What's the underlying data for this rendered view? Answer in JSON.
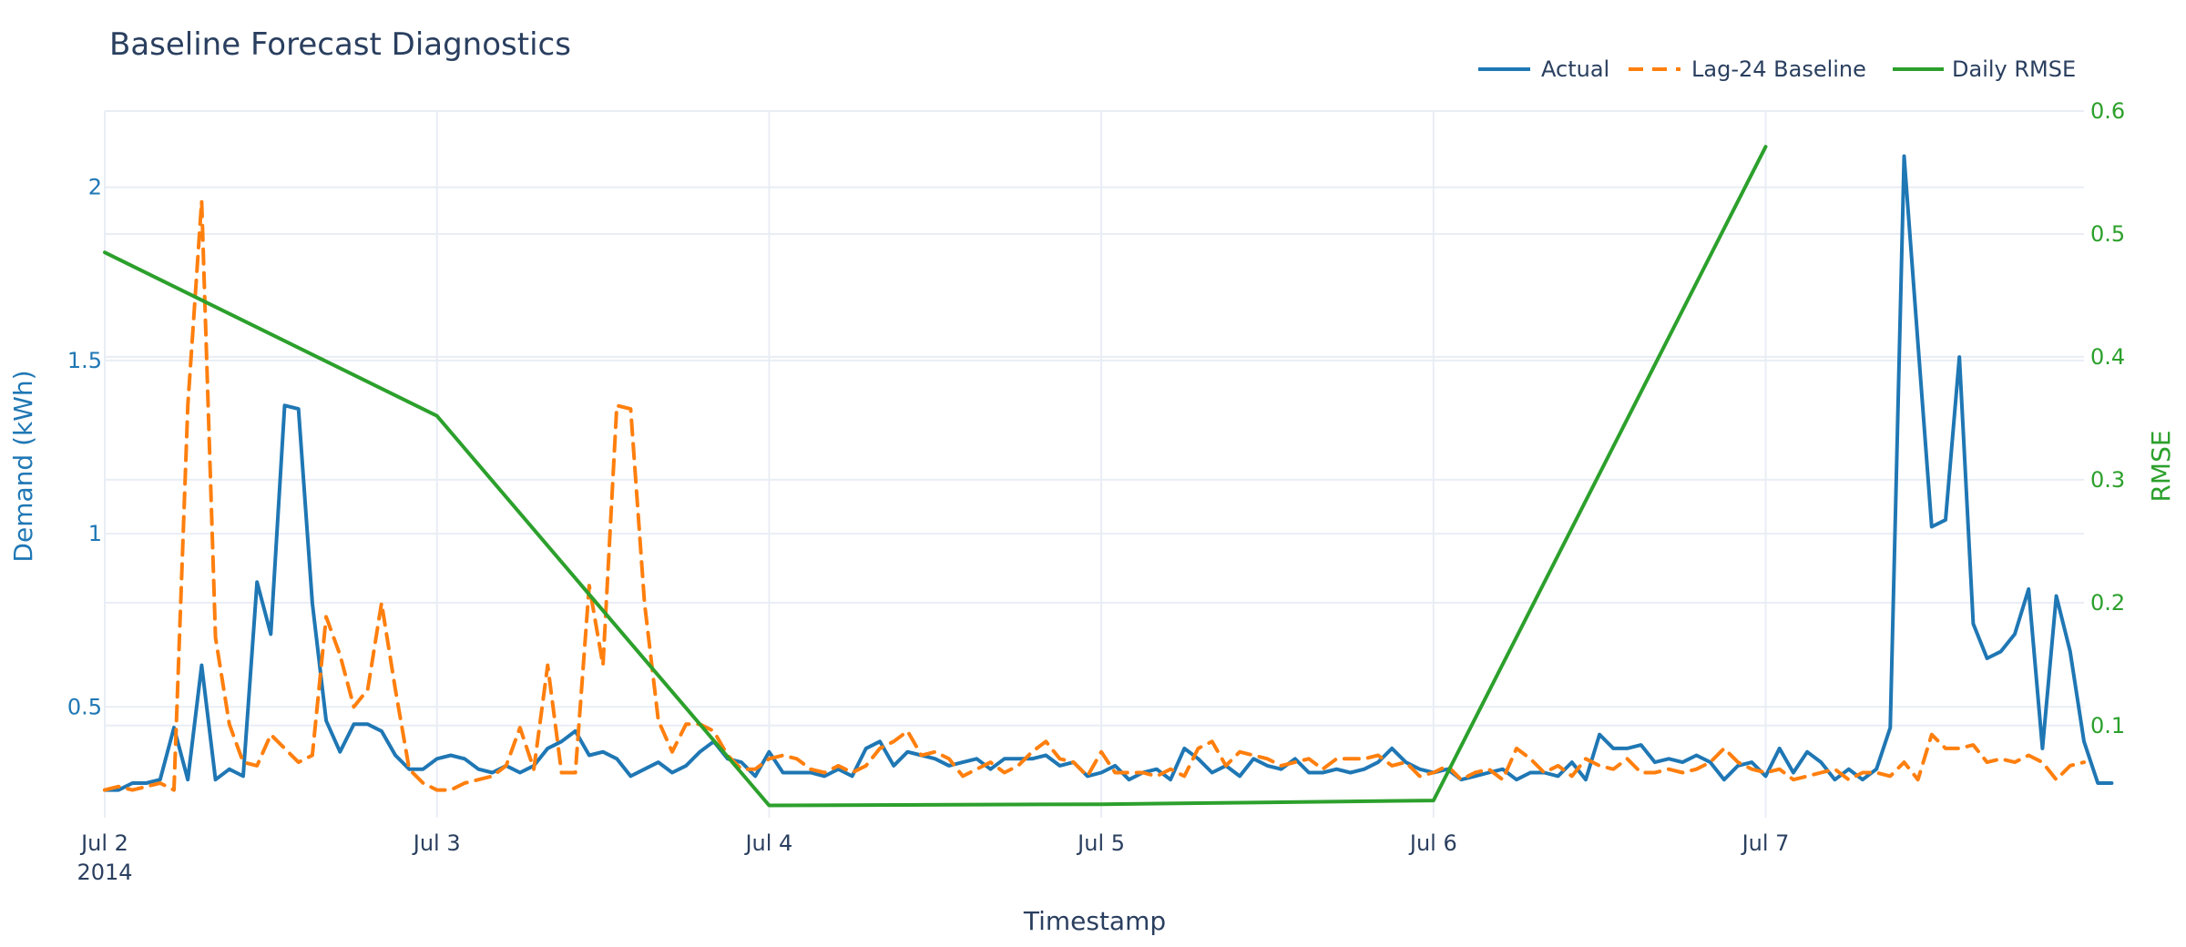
{
  "chart_data": {
    "type": "line",
    "title": "Baseline Forecast Diagnostics",
    "xlabel": "Timestamp",
    "ylabel": "Demand (kWh)",
    "y2label": "RMSE",
    "grid": true,
    "legend_position": "top-right",
    "x_range": [
      "2014-07-02 00:00",
      "2014-07-07 23:00"
    ],
    "ylim": [
      0.18,
      2.22
    ],
    "y2lim": [
      0.025,
      0.6
    ],
    "x_ticks": [
      {
        "date": "2014-07-02",
        "label": "Jul 2",
        "sublabel": "2014"
      },
      {
        "date": "2014-07-03",
        "label": "Jul 3",
        "sublabel": ""
      },
      {
        "date": "2014-07-04",
        "label": "Jul 4",
        "sublabel": ""
      },
      {
        "date": "2014-07-05",
        "label": "Jul 5",
        "sublabel": ""
      },
      {
        "date": "2014-07-06",
        "label": "Jul 6",
        "sublabel": ""
      },
      {
        "date": "2014-07-07",
        "label": "Jul 7",
        "sublabel": ""
      }
    ],
    "y_ticks": [
      {
        "value": 0.5,
        "label": "0.5"
      },
      {
        "value": 1,
        "label": "1"
      },
      {
        "value": 1.5,
        "label": "1.5"
      },
      {
        "value": 2,
        "label": "2"
      }
    ],
    "y2_ticks": [
      {
        "value": 0.1,
        "label": "0.1"
      },
      {
        "value": 0.2,
        "label": "0.2"
      },
      {
        "value": 0.3,
        "label": "0.3"
      },
      {
        "value": 0.4,
        "label": "0.4"
      },
      {
        "value": 0.5,
        "label": "0.5"
      },
      {
        "value": 0.6,
        "label": "0.6"
      }
    ],
    "series": [
      {
        "name": "Actual",
        "axis": "y",
        "color": "#1f77b4",
        "dash": "solid",
        "x_start": "2014-07-02 00:00",
        "x_step_hours": 1,
        "values": [
          0.26,
          0.26,
          0.28,
          0.28,
          0.29,
          0.44,
          0.29,
          0.62,
          0.29,
          0.32,
          0.3,
          0.86,
          0.71,
          1.37,
          1.36,
          0.8,
          0.46,
          0.37,
          0.45,
          0.45,
          0.43,
          0.36,
          0.32,
          0.32,
          0.35,
          0.36,
          0.35,
          0.32,
          0.31,
          0.33,
          0.31,
          0.33,
          0.38,
          0.4,
          0.43,
          0.36,
          0.37,
          0.35,
          0.3,
          0.32,
          0.34,
          0.31,
          0.33,
          0.37,
          0.4,
          0.35,
          0.34,
          0.3,
          0.37,
          0.31,
          0.31,
          0.31,
          0.3,
          0.32,
          0.3,
          0.38,
          0.4,
          0.33,
          0.37,
          0.36,
          0.35,
          0.33,
          0.34,
          0.35,
          0.32,
          0.35,
          0.35,
          0.35,
          0.36,
          0.33,
          0.34,
          0.3,
          0.31,
          0.33,
          0.29,
          0.31,
          0.32,
          0.29,
          0.38,
          0.35,
          0.31,
          0.33,
          0.3,
          0.35,
          0.33,
          0.32,
          0.35,
          0.31,
          0.31,
          0.32,
          0.31,
          0.32,
          0.34,
          0.38,
          0.34,
          0.32,
          0.31,
          0.32,
          0.29,
          0.3,
          0.31,
          0.32,
          0.29,
          0.31,
          0.31,
          0.3,
          0.34,
          0.29,
          0.42,
          0.38,
          0.38,
          0.39,
          0.34,
          0.35,
          0.34,
          0.36,
          0.34,
          0.29,
          0.33,
          0.34,
          0.3,
          0.38,
          0.31,
          0.37,
          0.34,
          0.29,
          0.32,
          0.29,
          0.32,
          0.44,
          2.09,
          1.55,
          1.02,
          1.04,
          1.51,
          0.74,
          0.64,
          0.66,
          0.71,
          0.84,
          0.38,
          0.82,
          0.66,
          0.4,
          0.28,
          0.28
        ]
      },
      {
        "name": "Lag-24 Baseline",
        "axis": "y",
        "color": "#ff7f0e",
        "dash": "dashed",
        "x_start": "2014-07-02 00:00",
        "x_step_hours": 1,
        "values": [
          0.26,
          0.27,
          0.26,
          0.27,
          0.28,
          0.26,
          1.37,
          1.96,
          0.7,
          0.45,
          0.34,
          0.33,
          0.42,
          0.38,
          0.34,
          0.36,
          0.76,
          0.65,
          0.5,
          0.55,
          0.8,
          0.55,
          0.32,
          0.28,
          0.26,
          0.26,
          0.28,
          0.29,
          0.3,
          0.33,
          0.44,
          0.32,
          0.62,
          0.31,
          0.31,
          0.85,
          0.62,
          1.37,
          1.36,
          0.8,
          0.46,
          0.37,
          0.45,
          0.45,
          0.43,
          0.36,
          0.32,
          0.32,
          0.35,
          0.36,
          0.35,
          0.32,
          0.31,
          0.33,
          0.31,
          0.33,
          0.38,
          0.4,
          0.43,
          0.36,
          0.37,
          0.35,
          0.3,
          0.32,
          0.34,
          0.31,
          0.33,
          0.37,
          0.4,
          0.35,
          0.34,
          0.3,
          0.37,
          0.31,
          0.31,
          0.31,
          0.3,
          0.32,
          0.3,
          0.38,
          0.4,
          0.33,
          0.37,
          0.36,
          0.35,
          0.33,
          0.34,
          0.35,
          0.32,
          0.35,
          0.35,
          0.35,
          0.36,
          0.33,
          0.34,
          0.3,
          0.31,
          0.33,
          0.29,
          0.31,
          0.32,
          0.29,
          0.38,
          0.35,
          0.31,
          0.33,
          0.3,
          0.35,
          0.33,
          0.32,
          0.35,
          0.31,
          0.31,
          0.32,
          0.31,
          0.32,
          0.34,
          0.38,
          0.34,
          0.32,
          0.31,
          0.32,
          0.29,
          0.3,
          0.31,
          0.32,
          0.29,
          0.31,
          0.31,
          0.3,
          0.34,
          0.29,
          0.42,
          0.38,
          0.38,
          0.39,
          0.34,
          0.35,
          0.34,
          0.36,
          0.34,
          0.29,
          0.33,
          0.34
        ]
      },
      {
        "name": "Daily RMSE",
        "axis": "y2",
        "color": "#2ca02c",
        "dash": "solid",
        "x": [
          "2014-07-02",
          "2014-07-03",
          "2014-07-04",
          "2014-07-05",
          "2014-07-06",
          "2014-07-07"
        ],
        "values": [
          0.485,
          0.352,
          0.035,
          0.036,
          0.039,
          0.571
        ]
      }
    ]
  }
}
